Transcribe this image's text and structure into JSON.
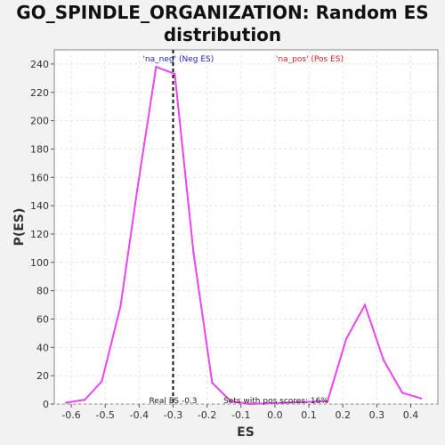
{
  "chart_data": {
    "type": "line",
    "title": "GO_SPINDLE_ORGANIZATION: Random ES distribution",
    "title_lines": [
      "GO_SPINDLE_ORGANIZATION: Random ES",
      "distribution"
    ],
    "xlabel": "ES",
    "ylabel": "P(ES)",
    "xlim": [
      -0.65,
      0.48
    ],
    "ylim": [
      0,
      250
    ],
    "x_ticks": [
      -0.6,
      -0.5,
      -0.4,
      -0.3,
      -0.2,
      -0.1,
      0.0,
      0.1,
      0.2,
      0.3,
      0.4
    ],
    "x_tick_labels": [
      "-0.6",
      "-0.5",
      "-0.4",
      "-0.3",
      "-0.2",
      "-0.1",
      "0.0",
      "0.1",
      "0.2",
      "0.3",
      "0.4"
    ],
    "y_ticks": [
      0,
      20,
      40,
      60,
      80,
      100,
      120,
      140,
      160,
      180,
      200,
      220,
      240
    ],
    "y_tick_labels": [
      "0",
      "20",
      "40",
      "60",
      "80",
      "100",
      "120",
      "140",
      "160",
      "180",
      "200",
      "220",
      "240"
    ],
    "grid": true,
    "series": [
      {
        "color": "#ee44ee",
        "x": [
          -0.615,
          -0.56,
          -0.51,
          -0.455,
          -0.405,
          -0.35,
          -0.295,
          -0.24,
          -0.185,
          -0.13,
          -0.075,
          0.155,
          0.21,
          0.265,
          0.32,
          0.375,
          0.43
        ],
        "y": [
          1,
          3,
          16,
          69,
          152,
          238,
          233,
          107,
          15,
          2,
          0,
          2,
          46,
          70,
          31,
          8,
          4
        ]
      }
    ],
    "real_es": -0.3,
    "annotations": {
      "neg_label": "'na_neg' (Neg ES)",
      "neg_color": "#2222cc",
      "pos_label": "'na_pos' (Pos ES)",
      "pos_color": "#dd2222",
      "real_es_label": "Real ES -0.3",
      "sets_label": "Sets with pos scores: 16%"
    }
  },
  "colors": {
    "background": "#f2f2f2",
    "plot_background": "#ffffff",
    "grid": "#e4e4e4",
    "line": "#ee44ee",
    "real_es_line": "#111111"
  }
}
